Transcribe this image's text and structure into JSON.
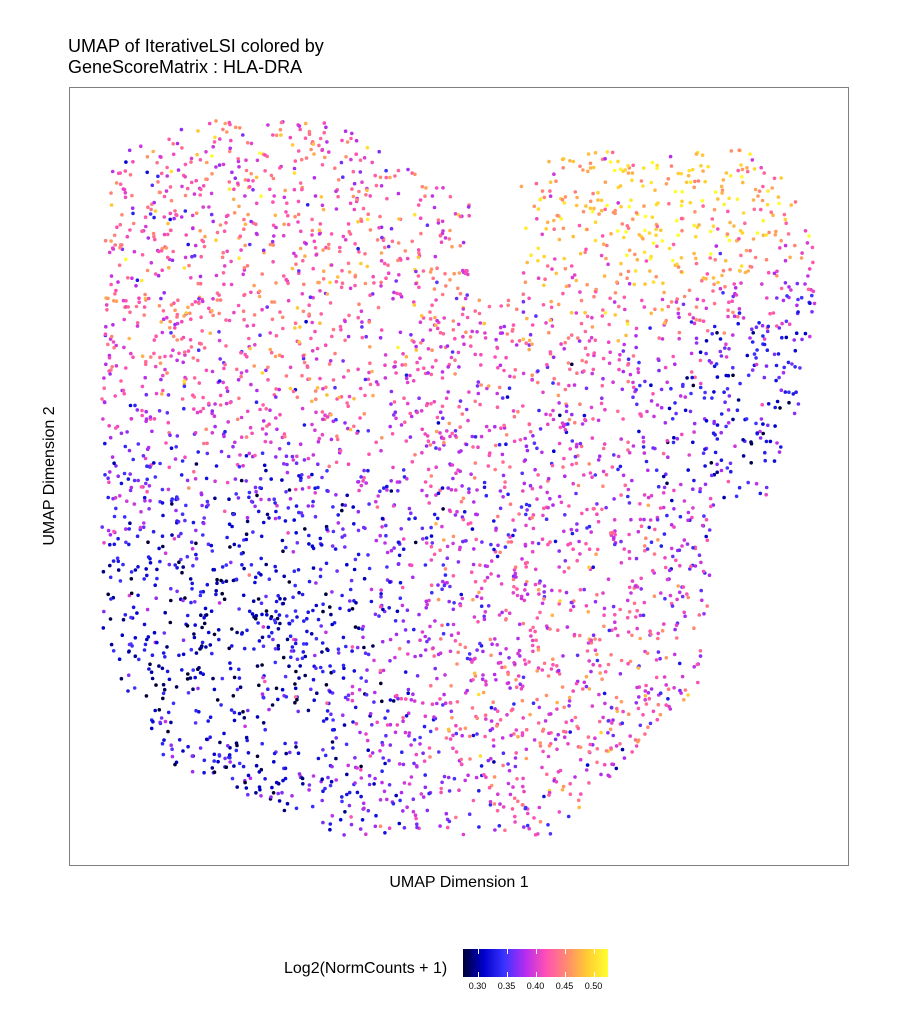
{
  "chart_data": {
    "type": "scatter",
    "title_line1": "UMAP of IterativeLSI colored by",
    "title_line2": "GeneScoreMatrix : HLA-DRA",
    "xlabel": "UMAP Dimension 1",
    "ylabel": "UMAP Dimension 2",
    "x_ticks_shown": false,
    "y_ticks_shown": false,
    "grid": false,
    "legend": {
      "title": "Log2(NormCounts + 1)",
      "placement": "bottom",
      "ticks": [
        "0.30",
        "0.35",
        "0.40",
        "0.45",
        "0.50"
      ],
      "tick_values": [
        0.3,
        0.35,
        0.4,
        0.45,
        0.5
      ],
      "range": [
        0.275,
        0.525
      ],
      "colors": [
        "#000033",
        "#0000cc",
        "#3b33ff",
        "#b42cf0",
        "#ff50b4",
        "#ff8a70",
        "#ffcc33",
        "#ffff30"
      ]
    },
    "n_cells_approx": 4200,
    "regions": [
      {
        "name": "lower-left cluster",
        "value_level": 0.31
      },
      {
        "name": "upper-left cluster",
        "value_level": 0.43
      },
      {
        "name": "upper-right cluster",
        "value_level": 0.5
      },
      {
        "name": "right edge",
        "value_level": 0.32
      },
      {
        "name": "lower-middle cluster",
        "value_level": 0.42
      }
    ]
  }
}
